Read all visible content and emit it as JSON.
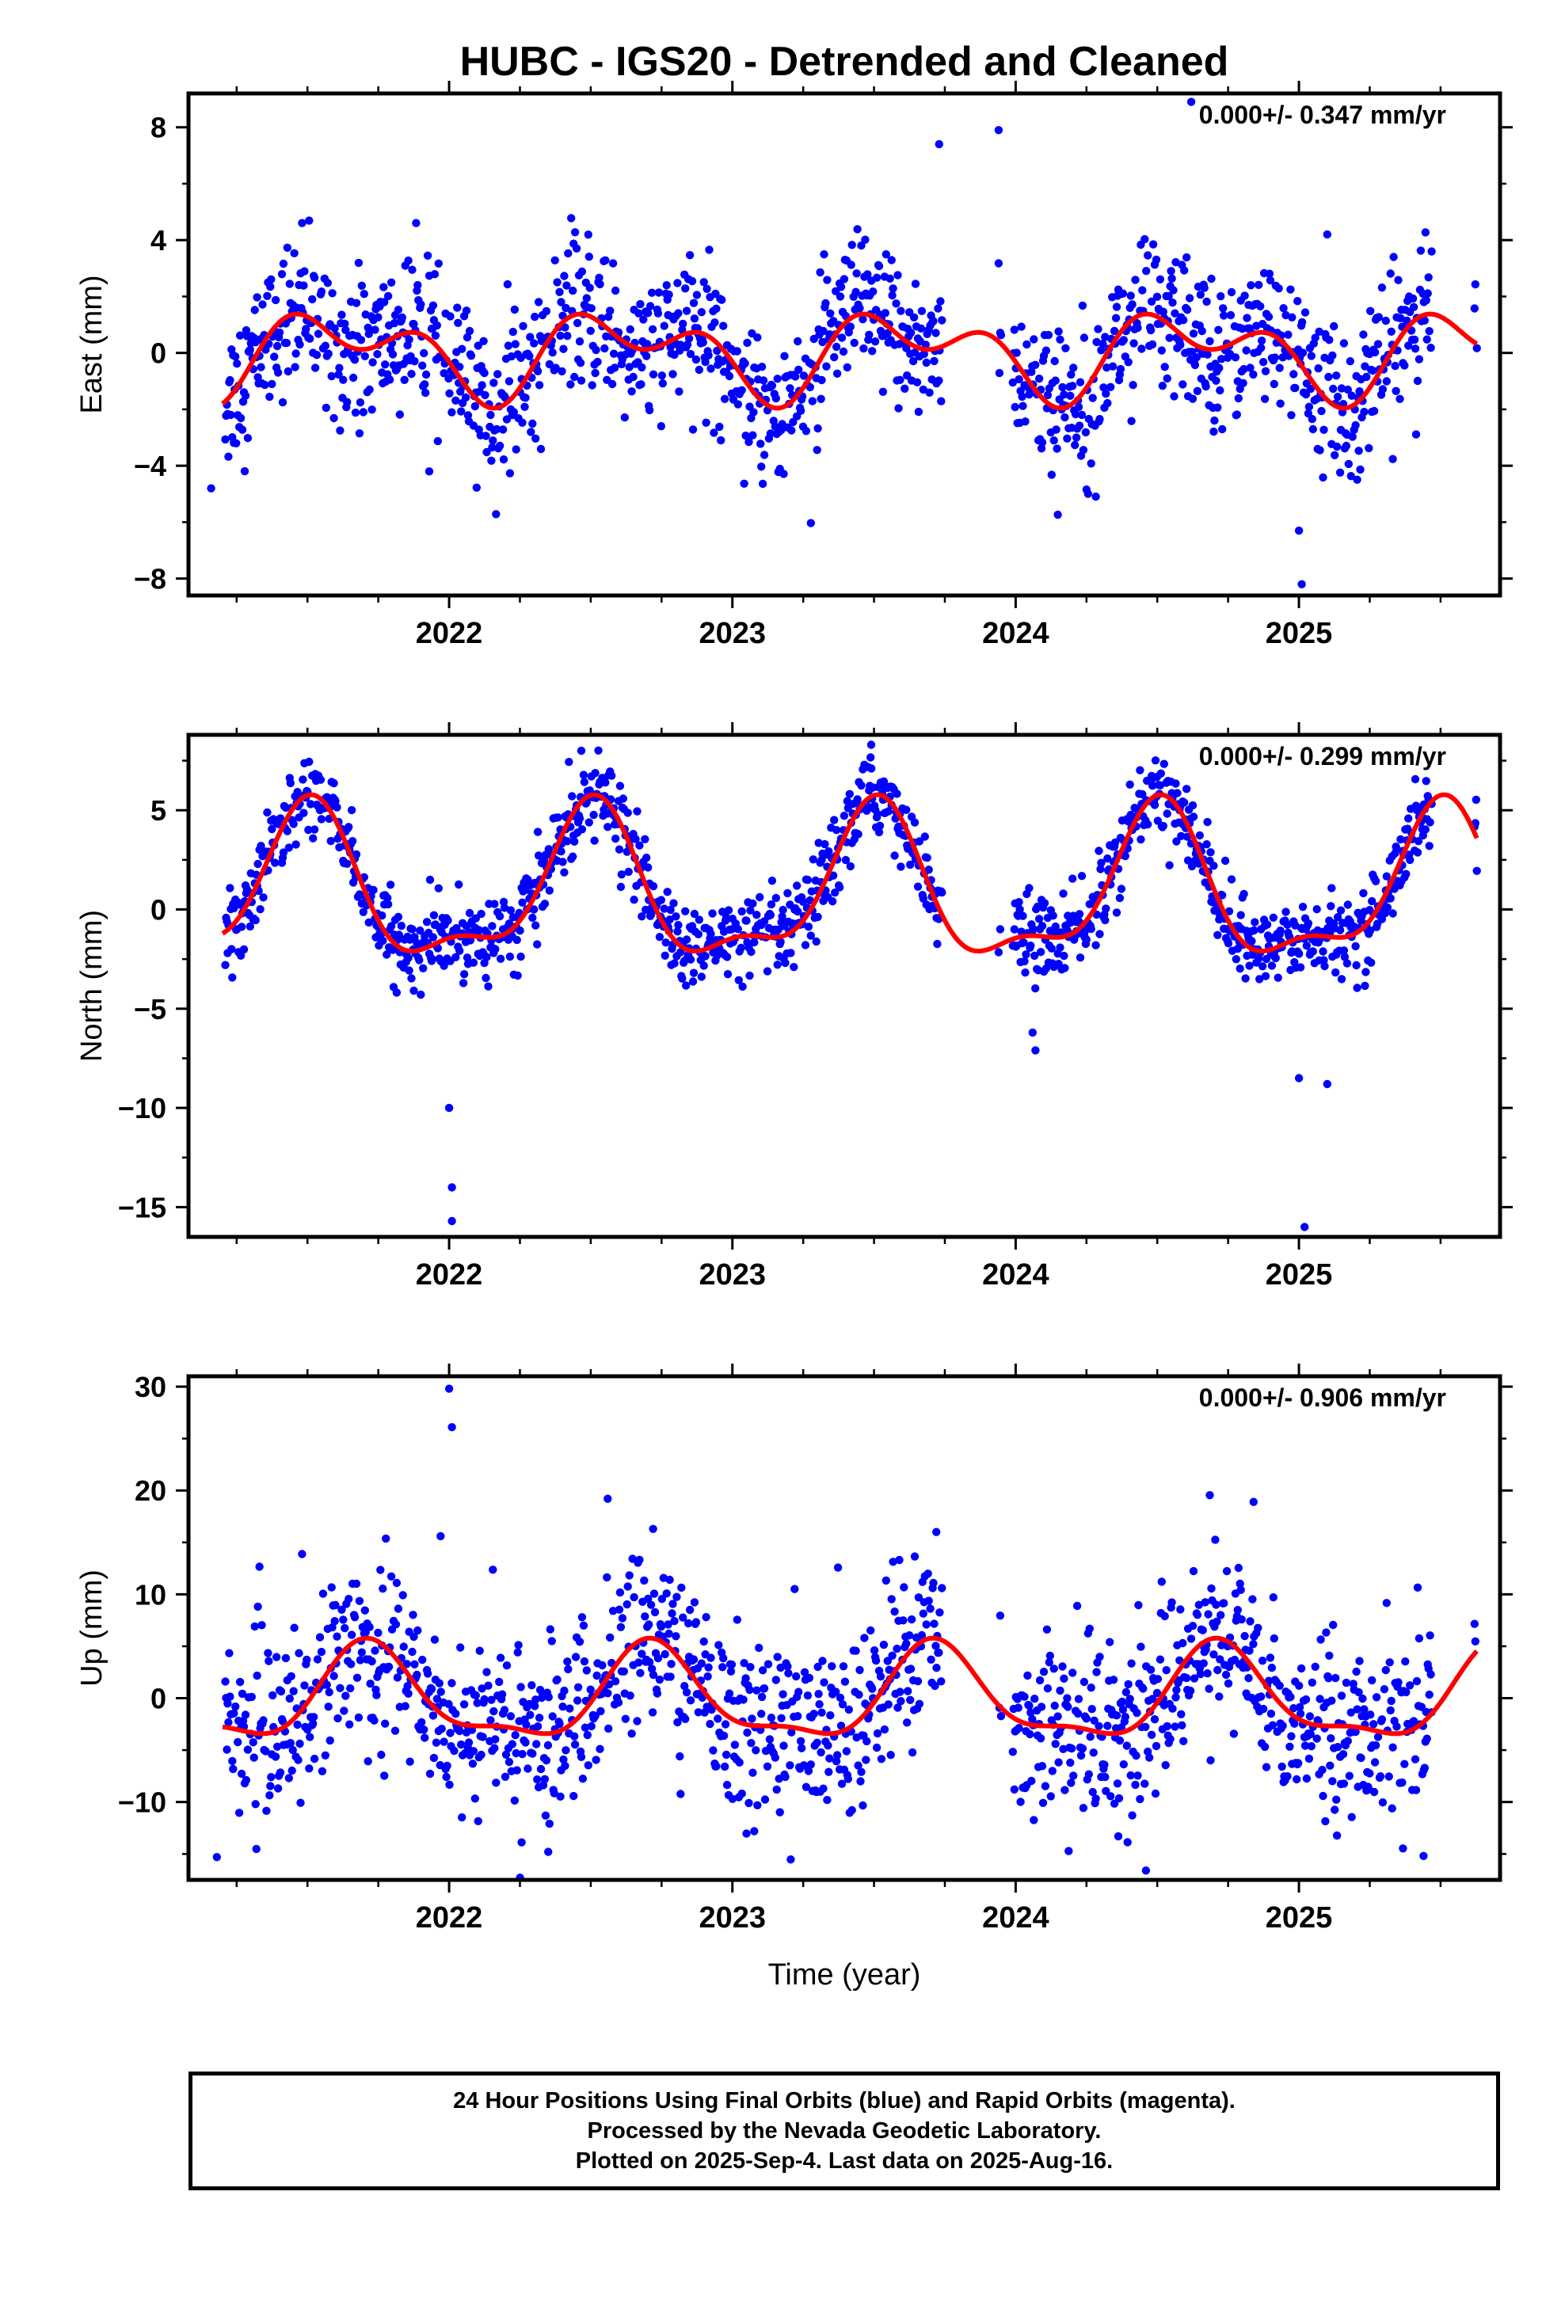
{
  "footer": {
    "line1": "24 Hour Positions Using Final Orbits (blue) and Rapid Orbits (magenta).",
    "line2": "Processed by the Nevada Geodetic Laboratory.",
    "line3": "Plotted on 2025-Sep-4. Last data on 2025-Aug-16."
  },
  "chart_data": [
    {
      "type": "scatter",
      "title": "HUBC - IGS20 - Detrended and Cleaned",
      "xlabel": "",
      "ylabel": "East (mm)",
      "xlim": [
        2021.08,
        2025.71
      ],
      "ylim": [
        -8.6,
        9.2
      ],
      "yticks": [
        -8,
        -4,
        0,
        4,
        8
      ],
      "xticks": [
        2022,
        2023,
        2024,
        2025
      ],
      "annotation": "0.000+/- 0.347 mm/yr",
      "colors": {
        "points": "#0000ff",
        "fit": "#ff0000"
      },
      "fit": {
        "mean": 0,
        "annual_amp": 1.1,
        "annual_phase_peak": 0.62,
        "semiannual_amp": 0.9,
        "semiannual_phase_peak": 0.42
      },
      "scatter_sd": 1.3,
      "outliers": [
        [
          2023.73,
          7.4
        ],
        [
          2023.94,
          7.9
        ],
        [
          2024.62,
          8.9
        ],
        [
          2025.01,
          -8.2
        ],
        [
          2025.0,
          -6.3
        ],
        [
          2021.16,
          -4.8
        ],
        [
          2021.93,
          -4.2
        ],
        [
          2025.1,
          4.2
        ]
      ],
      "series": [
        {
          "name": "",
          "type": "points"
        },
        {
          "name": "",
          "type": "fit"
        }
      ]
    },
    {
      "type": "scatter",
      "title": "",
      "xlabel": "",
      "ylabel": "North (mm)",
      "xlim": [
        2021.08,
        2025.71
      ],
      "ylim": [
        -16.5,
        8.8
      ],
      "yticks": [
        -15,
        -10,
        -5,
        0,
        5
      ],
      "xticks": [
        2022,
        2023,
        2024,
        2025
      ],
      "annotation": "0.000+/- 0.299 mm/yr",
      "colors": {
        "points": "#0000ff",
        "fit": "#ff0000"
      },
      "fit": {
        "mean": 0.8,
        "annual_amp": 3.6,
        "annual_phase_peak": 0.5,
        "semiannual_amp": 1.4,
        "semiannual_phase_peak": 0.52
      },
      "scatter_sd": 1.0,
      "outliers": [
        [
          2022.0,
          -10.0
        ],
        [
          2022.01,
          -14.0
        ],
        [
          2022.01,
          -15.7
        ],
        [
          2024.07,
          -7.1
        ],
        [
          2024.06,
          -6.2
        ],
        [
          2025.0,
          -8.5
        ],
        [
          2025.1,
          -8.8
        ],
        [
          2025.02,
          -16.0
        ],
        [
          2023.49,
          8.3
        ]
      ],
      "series": [
        {
          "name": "",
          "type": "points"
        },
        {
          "name": "",
          "type": "fit"
        }
      ]
    },
    {
      "type": "scatter",
      "title": "",
      "xlabel": "Time (year)",
      "ylabel": "Up (mm)",
      "xlim": [
        2021.08,
        2025.71
      ],
      "ylim": [
        -17.5,
        31.0
      ],
      "yticks": [
        -10,
        0,
        10,
        20,
        30
      ],
      "xticks": [
        2022,
        2023,
        2024,
        2025
      ],
      "annotation": "0.000+/- 0.906 mm/yr",
      "colors": {
        "points": "#0000ff",
        "fit": "#ff0000"
      },
      "fit": {
        "mean": 0,
        "annual_amp": 4.3,
        "annual_phase_peak": 0.72,
        "semiannual_amp": 1.5,
        "semiannual_phase_peak": 0.2
      },
      "scatter_sd": 4.2,
      "outliers": [
        [
          2022.0,
          29.8
        ],
        [
          2022.01,
          26.1
        ],
        [
          2022.56,
          19.2
        ],
        [
          2022.72,
          16.3
        ],
        [
          2021.97,
          15.6
        ],
        [
          2024.46,
          -16.6
        ],
        [
          2025.44,
          -15.2
        ],
        [
          2021.18,
          -15.3
        ],
        [
          2024.84,
          18.9
        ],
        [
          2023.72,
          16.0
        ],
        [
          2022.35,
          -14.8
        ]
      ],
      "series": [
        {
          "name": "",
          "type": "points"
        },
        {
          "name": "",
          "type": "fit"
        }
      ]
    }
  ]
}
